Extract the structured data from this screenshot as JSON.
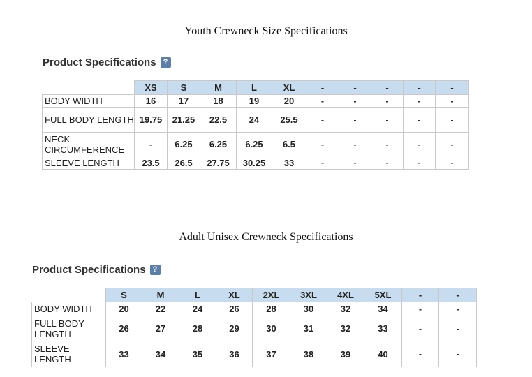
{
  "youth": {
    "title": "Youth Crewneck Size Specifications",
    "header": "Product Specifications",
    "help": "?",
    "columns": [
      "XS",
      "S",
      "M",
      "L",
      "XL",
      "-",
      "-",
      "-",
      "-",
      "-"
    ],
    "rows": [
      {
        "label": "BODY WIDTH",
        "values": [
          "16",
          "17",
          "18",
          "19",
          "20",
          "-",
          "-",
          "-",
          "-",
          "-"
        ]
      },
      {
        "label": "FULL BODY LENGTH",
        "values": [
          "19.75",
          "21.25",
          "22.5",
          "24",
          "25.5",
          "-",
          "-",
          "-",
          "-",
          "-"
        ]
      },
      {
        "label": "NECK CIRCUMFERENCE",
        "values": [
          "-",
          "6.25",
          "6.25",
          "6.25",
          "6.5",
          "-",
          "-",
          "-",
          "-",
          "-"
        ]
      },
      {
        "label": "SLEEVE LENGTH",
        "values": [
          "23.5",
          "26.5",
          "27.75",
          "30.25",
          "33",
          "-",
          "-",
          "-",
          "-",
          "-"
        ]
      }
    ]
  },
  "adult": {
    "title": "Adult Unisex Crewneck Specifications",
    "header": "Product Specifications",
    "help": "?",
    "columns": [
      "S",
      "M",
      "L",
      "XL",
      "2XL",
      "3XL",
      "4XL",
      "5XL",
      "-",
      "-"
    ],
    "rows": [
      {
        "label": "BODY WIDTH",
        "values": [
          "20",
          "22",
          "24",
          "26",
          "28",
          "30",
          "32",
          "34",
          "-",
          "-"
        ]
      },
      {
        "label": "FULL BODY LENGTH",
        "values": [
          "26",
          "27",
          "28",
          "29",
          "30",
          "31",
          "32",
          "33",
          "-",
          "-"
        ]
      },
      {
        "label": "SLEEVE LENGTH",
        "values": [
          "33",
          "34",
          "35",
          "36",
          "37",
          "38",
          "39",
          "40",
          "-",
          "-"
        ]
      }
    ]
  }
}
